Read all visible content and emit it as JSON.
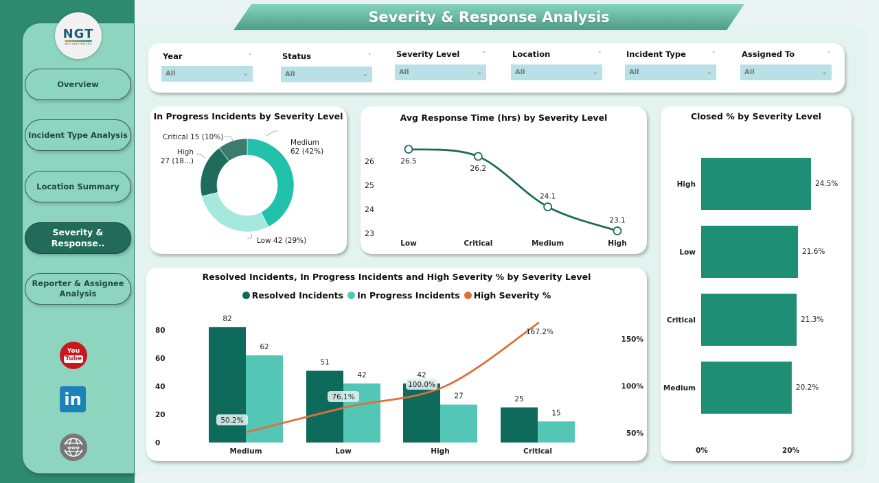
{
  "page": {
    "title": "Severity & Response Analysis"
  },
  "logo": {
    "text": "NGT",
    "subtitle": "NEXT GEN TEMPLATES"
  },
  "nav": {
    "items": [
      {
        "label": "Overview",
        "active": false
      },
      {
        "label": "Incident Type Analysis",
        "active": false
      },
      {
        "label": "Location Summary",
        "active": false
      },
      {
        "label": "Severity & Response..",
        "active": true
      },
      {
        "label": "Reporter & Assignee Analysis",
        "active": false
      }
    ],
    "social": [
      {
        "name": "youtube-icon",
        "label_top": "You",
        "label_bottom": "Tube"
      },
      {
        "name": "linkedin-icon",
        "label": "in"
      },
      {
        "name": "website-icon",
        "label": "www"
      }
    ]
  },
  "filters": [
    {
      "label": "Year",
      "value": "All"
    },
    {
      "label": "Status",
      "value": "All"
    },
    {
      "label": "Severity Level",
      "value": "All"
    },
    {
      "label": "Location",
      "value": "All"
    },
    {
      "label": "Incident Type",
      "value": "All"
    },
    {
      "label": "Assigned To",
      "value": "All"
    }
  ],
  "colors": {
    "resolved": "#0e6b5c",
    "in_progress": "#53c6b6",
    "high_severity": "#e0703a",
    "closed_bar": "#1e8f74",
    "line": "#1c6b5b",
    "donut": {
      "Medium": "#22c1ab",
      "Low": "#a5e8de",
      "High": "#1f6b5c",
      "Critical": "#3a7c6f"
    }
  },
  "chart_data": [
    {
      "type": "pie",
      "title": "In Progress Incidents by Severity Level",
      "donut": true,
      "categories": [
        "Medium",
        "Low",
        "High",
        "Critical"
      ],
      "values": [
        62,
        42,
        27,
        15
      ],
      "labels": [
        "Medium\n62 (42%)",
        "Low 42 (29%)",
        "High\n27 (18...)",
        "Critical 15 (10%)"
      ]
    },
    {
      "type": "line",
      "title": "Avg Response Time (hrs) by Severity Level",
      "categories": [
        "Low",
        "Critical",
        "Medium",
        "High"
      ],
      "values": [
        26.5,
        26.2,
        24.1,
        23.1
      ],
      "data_labels": [
        "26.5",
        "26.2",
        "24.1",
        "23.1"
      ],
      "yticks": [
        23,
        24,
        25,
        26
      ],
      "ylim": [
        23,
        26.5
      ],
      "xlabel": "",
      "ylabel": ""
    },
    {
      "type": "bar",
      "orientation": "horizontal",
      "title": "Closed % by Severity Level",
      "categories": [
        "High",
        "Low",
        "Critical",
        "Medium"
      ],
      "values": [
        24.5,
        21.6,
        21.3,
        20.2
      ],
      "data_labels": [
        "24.5%",
        "21.6%",
        "21.3%",
        "20.2%"
      ],
      "xticks": [
        "0%",
        "20%"
      ],
      "xlim": [
        0,
        24.5
      ]
    },
    {
      "type": "bar",
      "title": "Resolved Incidents, In Progress Incidents and High Severity % by Severity Level",
      "categories": [
        "Medium",
        "Low",
        "High",
        "Critical"
      ],
      "series": [
        {
          "name": "Resolved Incidents",
          "kind": "bar",
          "values": [
            82,
            51,
            42,
            25
          ]
        },
        {
          "name": "In Progress Incidents",
          "kind": "bar",
          "values": [
            62,
            42,
            27,
            15
          ]
        },
        {
          "name": "High Severity %",
          "kind": "line",
          "axis": "secondary",
          "values": [
            50.2,
            76.1,
            100.0,
            167.2
          ],
          "data_labels": [
            "50.2%",
            "76.1%",
            "100.0%",
            "167.2%"
          ]
        }
      ],
      "yticks_left": [
        "0",
        "20",
        "40",
        "60",
        "80"
      ],
      "ylim_left": [
        0,
        80
      ],
      "yticks_right": [
        "50%",
        "100%",
        "150%"
      ],
      "legend_position": "top"
    }
  ]
}
